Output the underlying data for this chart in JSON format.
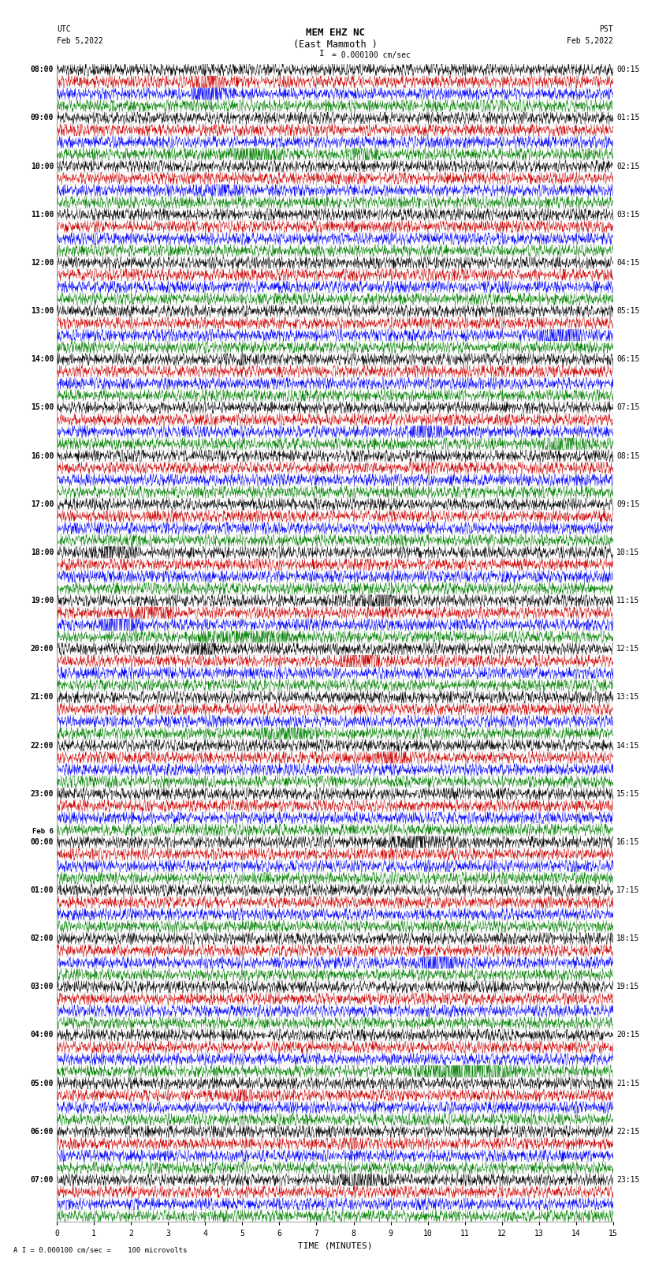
{
  "title_line1": "MEM EHZ NC",
  "title_line2": "(East Mammoth )",
  "scale_text": "I = 0.000100 cm/sec",
  "footer_text": "A I = 0.000100 cm/sec =    100 microvolts",
  "utc_label": "UTC",
  "utc_date": "Feb 5,2022",
  "pst_label": "PST",
  "pst_date": "Feb 5,2022",
  "xlabel": "TIME (MINUTES)",
  "xlim": [
    0,
    15
  ],
  "xticks": [
    0,
    1,
    2,
    3,
    4,
    5,
    6,
    7,
    8,
    9,
    10,
    11,
    12,
    13,
    14,
    15
  ],
  "bg_color": "#ffffff",
  "grid_color": "#888888",
  "trace_colors": [
    "black",
    "#cc0000",
    "blue",
    "green"
  ],
  "n_hour_rows": 24,
  "noise_amplitude": 0.32,
  "title_fontsize": 9,
  "label_fontsize": 7,
  "tick_fontsize": 7,
  "left_times_utc": [
    "08:00",
    "09:00",
    "10:00",
    "11:00",
    "12:00",
    "13:00",
    "14:00",
    "15:00",
    "16:00",
    "17:00",
    "18:00",
    "19:00",
    "20:00",
    "21:00",
    "22:00",
    "23:00",
    "Feb 6\n00:00",
    "01:00",
    "02:00",
    "03:00",
    "04:00",
    "05:00",
    "06:00",
    "07:00"
  ],
  "right_times_pst": [
    "00:15",
    "01:15",
    "02:15",
    "03:15",
    "04:15",
    "05:15",
    "06:15",
    "07:15",
    "08:15",
    "09:15",
    "10:15",
    "11:15",
    "12:15",
    "13:15",
    "14:15",
    "15:15",
    "16:15",
    "17:15",
    "18:15",
    "19:15",
    "20:15",
    "21:15",
    "22:15",
    "23:15"
  ],
  "special_events": [
    {
      "hour_row": 0,
      "trace": "blue",
      "xstart": 3.5,
      "xend": 4.8,
      "amplitude": 1.5
    },
    {
      "hour_row": 0,
      "trace": "blue",
      "xstart": 3.8,
      "xend": 4.2,
      "amplitude": 3.0
    },
    {
      "hour_row": 0,
      "trace": "black",
      "xstart": 3.85,
      "xend": 4.15,
      "amplitude": 0.8
    },
    {
      "hour_row": 0,
      "trace": "red",
      "xstart": 3.5,
      "xend": 4.6,
      "amplitude": 1.2
    },
    {
      "hour_row": 1,
      "trace": "green",
      "xstart": 4.2,
      "xend": 6.5,
      "amplitude": 0.9
    },
    {
      "hour_row": 1,
      "trace": "green",
      "xstart": 7.5,
      "xend": 9.0,
      "amplitude": 0.6
    },
    {
      "hour_row": 2,
      "trace": "blue",
      "xstart": 3.5,
      "xend": 5.5,
      "amplitude": 0.7
    },
    {
      "hour_row": 5,
      "trace": "blue",
      "xstart": 12.5,
      "xend": 14.5,
      "amplitude": 0.9
    },
    {
      "hour_row": 6,
      "trace": "black",
      "xstart": 4.8,
      "xend": 5.2,
      "amplitude": 0.8
    },
    {
      "hour_row": 7,
      "trace": "blue",
      "xstart": 9.0,
      "xend": 11.0,
      "amplitude": 0.7
    },
    {
      "hour_row": 7,
      "trace": "green",
      "xstart": 12.5,
      "xend": 14.8,
      "amplitude": 0.8
    },
    {
      "hour_row": 10,
      "trace": "black",
      "xstart": 0.5,
      "xend": 2.5,
      "amplitude": 0.9
    },
    {
      "hour_row": 11,
      "trace": "blue",
      "xstart": 1.0,
      "xend": 2.5,
      "amplitude": 2.5
    },
    {
      "hour_row": 11,
      "trace": "red",
      "xstart": 1.5,
      "xend": 3.5,
      "amplitude": 0.9
    },
    {
      "hour_row": 11,
      "trace": "green",
      "xstart": 3.0,
      "xend": 7.0,
      "amplitude": 0.8
    },
    {
      "hour_row": 11,
      "trace": "black",
      "xstart": 7.0,
      "xend": 10.0,
      "amplitude": 0.7
    },
    {
      "hour_row": 12,
      "trace": "black",
      "xstart": 3.5,
      "xend": 4.5,
      "amplitude": 0.9
    },
    {
      "hour_row": 12,
      "trace": "red",
      "xstart": 7.0,
      "xend": 9.5,
      "amplitude": 0.6
    },
    {
      "hour_row": 13,
      "trace": "green",
      "xstart": 5.0,
      "xend": 7.5,
      "amplitude": 0.7
    },
    {
      "hour_row": 14,
      "trace": "red",
      "xstart": 8.0,
      "xend": 10.0,
      "amplitude": 0.6
    },
    {
      "hour_row": 16,
      "trace": "black",
      "xstart": 8.0,
      "xend": 11.5,
      "amplitude": 0.7
    },
    {
      "hour_row": 18,
      "trace": "blue",
      "xstart": 9.5,
      "xend": 11.0,
      "amplitude": 1.5
    },
    {
      "hour_row": 20,
      "trace": "green",
      "xstart": 9.0,
      "xend": 13.0,
      "amplitude": 1.8
    },
    {
      "hour_row": 21,
      "trace": "red",
      "xstart": 4.5,
      "xend": 5.5,
      "amplitude": 0.8
    },
    {
      "hour_row": 22,
      "trace": "red",
      "xstart": 7.5,
      "xend": 8.5,
      "amplitude": 0.7
    },
    {
      "hour_row": 23,
      "trace": "black",
      "xstart": 7.0,
      "xend": 9.5,
      "amplitude": 0.8
    }
  ]
}
